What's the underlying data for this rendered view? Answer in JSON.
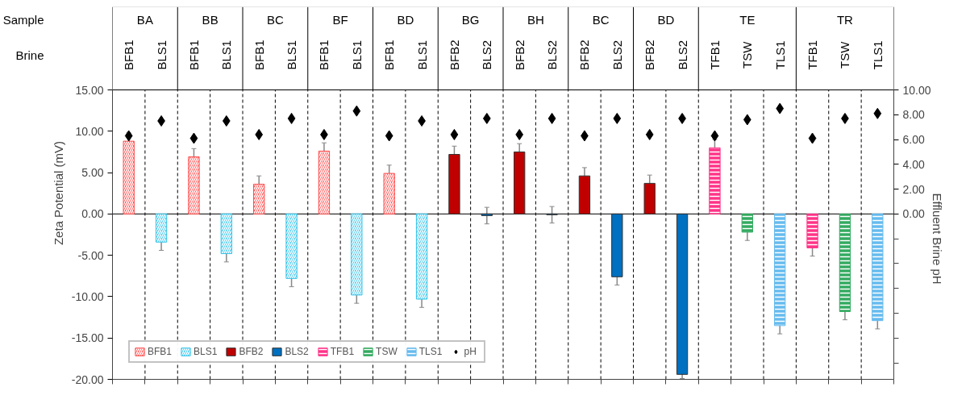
{
  "chart_data": {
    "type": "bar",
    "ylabel": "Zeta Potential (mV)",
    "y2label": "Effluent Brine pH",
    "categories": [
      "BFB1",
      "BLS1",
      "BFB1",
      "BLS1",
      "BFB1",
      "BLS1",
      "BFB1",
      "BLS1",
      "BFB1",
      "BLS1",
      "BFB2",
      "BLS2",
      "BFB2",
      "BLS2",
      "BFB2",
      "BLS2",
      "BFB2",
      "BLS2",
      "TFB1",
      "TSW",
      "TLS1",
      "TFB1",
      "TSW",
      "TLS1"
    ],
    "annotations": [
      "Sample",
      "Brine",
      "BA",
      "BB",
      "BC",
      "BF",
      "BD",
      "BG",
      "BH",
      "BC",
      "BD",
      "TE",
      "TR"
    ],
    "series": [
      {
        "name": "BFB1",
        "color": "#ff4d4d",
        "values": [
          8.8,
          null,
          6.9,
          null,
          3.6,
          null,
          7.6,
          null,
          4.9,
          null,
          null,
          null,
          null,
          null,
          null,
          null,
          null,
          null,
          null,
          null,
          null,
          null,
          null,
          null
        ],
        "errors": [
          1,
          null,
          1,
          null,
          1,
          null,
          1,
          null,
          1,
          null,
          null,
          null,
          null,
          null,
          null,
          null,
          null,
          null,
          null,
          null,
          null,
          null,
          null,
          null
        ]
      },
      {
        "name": "BLS1",
        "color": "#33c3ea",
        "values": [
          null,
          -3.4,
          null,
          -4.8,
          null,
          -7.8,
          null,
          -9.8,
          null,
          -10.3,
          null,
          null,
          null,
          null,
          null,
          null,
          null,
          null,
          null,
          null,
          null,
          null,
          null,
          null
        ],
        "errors": [
          null,
          1,
          null,
          1,
          null,
          1,
          null,
          1,
          null,
          1,
          null,
          null,
          null,
          null,
          null,
          null,
          null,
          null,
          null,
          null,
          null,
          null,
          null,
          null
        ]
      },
      {
        "name": "BFB2",
        "color": "#c00000",
        "values": [
          null,
          null,
          null,
          null,
          null,
          null,
          null,
          null,
          null,
          null,
          7.2,
          null,
          7.5,
          null,
          4.6,
          null,
          3.7,
          null,
          null,
          null,
          null,
          null,
          null,
          null
        ],
        "errors": [
          null,
          null,
          null,
          null,
          null,
          null,
          null,
          null,
          null,
          null,
          1,
          null,
          1,
          null,
          1,
          null,
          1,
          null,
          null,
          null,
          null,
          null,
          null,
          null
        ]
      },
      {
        "name": "BLS2",
        "color": "#0070c0",
        "values": [
          null,
          null,
          null,
          null,
          null,
          null,
          null,
          null,
          null,
          null,
          null,
          -0.2,
          null,
          -0.1,
          null,
          -7.6,
          null,
          -19.4,
          null,
          null,
          null,
          null,
          null,
          null
        ],
        "errors": [
          null,
          null,
          null,
          null,
          null,
          null,
          null,
          null,
          null,
          null,
          null,
          1,
          null,
          1,
          null,
          1,
          null,
          0.5,
          null,
          null,
          null,
          null,
          null,
          null
        ]
      },
      {
        "name": "TFB1",
        "color": "#ff3388",
        "values": [
          null,
          null,
          null,
          null,
          null,
          null,
          null,
          null,
          null,
          null,
          null,
          null,
          null,
          null,
          null,
          null,
          null,
          null,
          8.0,
          null,
          null,
          -4.1,
          null,
          null
        ],
        "errors": [
          null,
          null,
          null,
          null,
          null,
          null,
          null,
          null,
          null,
          null,
          null,
          null,
          null,
          null,
          null,
          null,
          null,
          null,
          1,
          null,
          null,
          1,
          null,
          null
        ]
      },
      {
        "name": "TSW",
        "color": "#33aa60",
        "values": [
          null,
          null,
          null,
          null,
          null,
          null,
          null,
          null,
          null,
          null,
          null,
          null,
          null,
          null,
          null,
          null,
          null,
          null,
          null,
          -2.2,
          null,
          null,
          -11.8,
          null
        ],
        "errors": [
          null,
          null,
          null,
          null,
          null,
          null,
          null,
          null,
          null,
          null,
          null,
          null,
          null,
          null,
          null,
          null,
          null,
          null,
          null,
          1,
          null,
          null,
          1,
          null
        ]
      },
      {
        "name": "TLS1",
        "color": "#66bbee",
        "values": [
          null,
          null,
          null,
          null,
          null,
          null,
          null,
          null,
          null,
          null,
          null,
          null,
          null,
          null,
          null,
          null,
          null,
          null,
          null,
          null,
          -13.5,
          null,
          null,
          -12.9
        ],
        "errors": [
          null,
          null,
          null,
          null,
          null,
          null,
          null,
          null,
          null,
          null,
          null,
          null,
          null,
          null,
          null,
          null,
          null,
          null,
          null,
          null,
          1,
          null,
          null,
          1
        ]
      },
      {
        "name": "pH",
        "type": "scatter",
        "axis": "y2",
        "marker": "diamond",
        "color": "#000000",
        "values": [
          6.3,
          7.5,
          6.1,
          7.5,
          6.4,
          7.7,
          6.4,
          8.3,
          6.3,
          7.5,
          6.4,
          7.7,
          6.4,
          7.7,
          6.3,
          7.7,
          6.4,
          7.7,
          6.3,
          7.6,
          8.5,
          6.1,
          7.7,
          8.1
        ]
      }
    ],
    "ylim": [
      -20,
      15
    ],
    "yticks": [
      {
        "value": -20,
        "label": "-20.00"
      },
      {
        "value": -15,
        "label": "-15.00"
      },
      {
        "value": -10,
        "label": "-10.00"
      },
      {
        "value": -5,
        "label": "-5.00"
      },
      {
        "value": 0,
        "label": "0.00"
      },
      {
        "value": 5,
        "label": "5.00"
      },
      {
        "value": 10,
        "label": "10.00"
      },
      {
        "value": 15,
        "label": "15.00"
      }
    ],
    "y2lim": [
      -13.33,
      10
    ],
    "y2ticks": [
      {
        "value": -12,
        "label": null
      },
      {
        "value": -10,
        "label": null
      },
      {
        "value": -8,
        "label": null
      },
      {
        "value": -6,
        "label": null
      },
      {
        "value": -4,
        "label": null
      },
      {
        "value": -2,
        "label": null
      },
      {
        "value": 0,
        "label": "0.00"
      },
      {
        "value": 2,
        "label": "2.00"
      },
      {
        "value": 4,
        "label": "4.00"
      },
      {
        "value": 6,
        "label": "6.00"
      },
      {
        "value": 8,
        "label": "8.00"
      },
      {
        "value": 10,
        "label": "10.00"
      }
    ],
    "grid": "x",
    "legend": "bottom left"
  }
}
